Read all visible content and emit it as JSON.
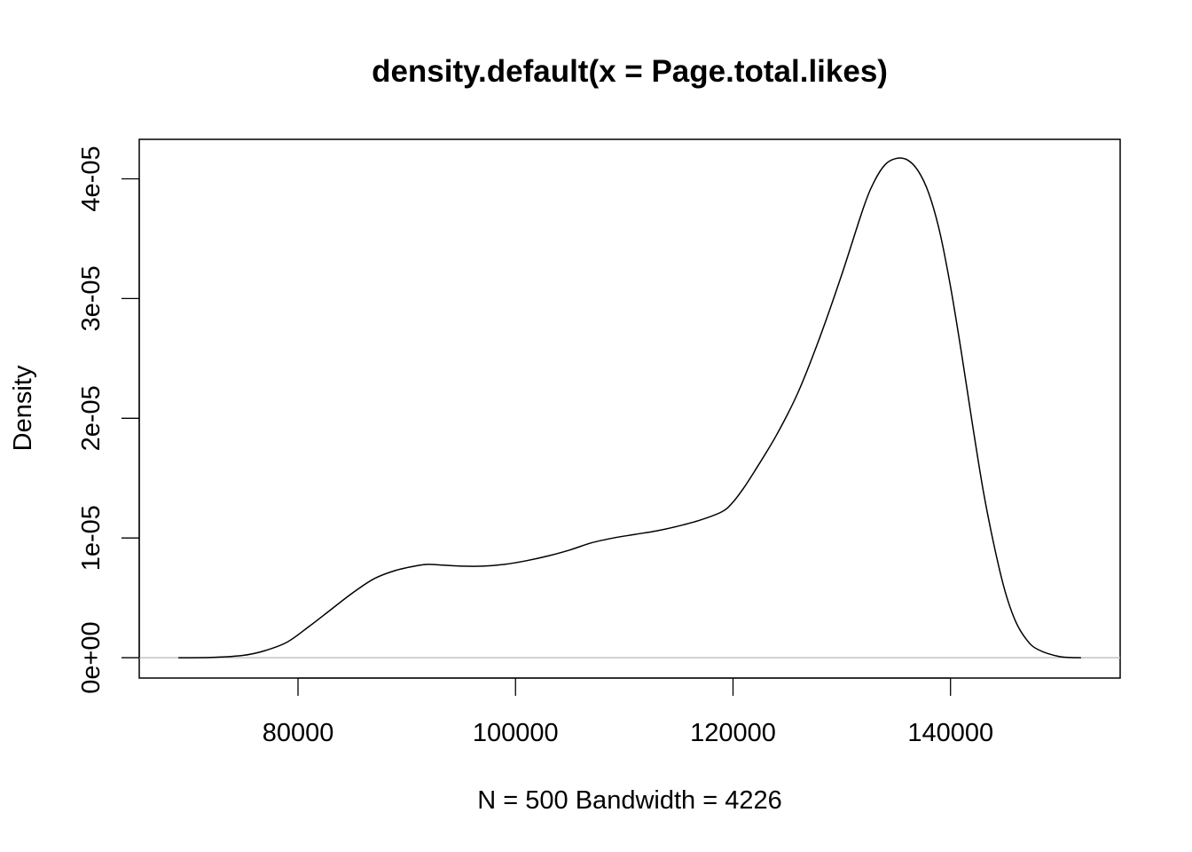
{
  "chart_data": {
    "type": "line",
    "title": "density.default(x = Page.total.likes)",
    "xlabel": "N = 500   Bandwidth = 4226",
    "ylabel": "Density",
    "xlim": [
      65400,
      155600
    ],
    "ylim": [
      -1.7e-06,
      4.33e-05
    ],
    "x_ticks": [
      80000,
      100000,
      120000,
      140000
    ],
    "x_tick_labels": [
      "80000",
      "100000",
      "120000",
      "140000"
    ],
    "y_ticks": [
      0,
      1e-05,
      2e-05,
      3e-05,
      4e-05
    ],
    "y_tick_labels": [
      "0e+00",
      "1e-05",
      "2e-05",
      "3e-05",
      "4e-05"
    ],
    "grid": false,
    "zero_line": true,
    "series": [
      {
        "x": [
          69000,
          72000,
          75000,
          77000,
          79000,
          81000,
          83000,
          85000,
          87000,
          89000,
          91000,
          92000,
          93000,
          95000,
          97000,
          99000,
          101000,
          103000,
          105000,
          107000,
          109000,
          111000,
          113000,
          115000,
          117000,
          119000,
          120000,
          121000,
          122000,
          124000,
          126000,
          128000,
          130000,
          132000,
          133000,
          134000,
          135000,
          136000,
          137000,
          138000,
          139000,
          140000,
          141000,
          142000,
          143000,
          144000,
          145000,
          146000,
          147000,
          148000,
          150000,
          152000
        ],
        "y": [
          0,
          2e-08,
          2e-07,
          6e-07,
          1.3e-06,
          2.6e-06,
          4e-06,
          5.4e-06,
          6.6e-06,
          7.3e-06,
          7.7e-06,
          7.8e-06,
          7.75e-06,
          7.65e-06,
          7.65e-06,
          7.8e-06,
          8.1e-06,
          8.5e-06,
          9e-06,
          9.6e-06,
          1e-05,
          1.03e-05,
          1.06e-05,
          1.1e-05,
          1.15e-05,
          1.22e-05,
          1.3e-05,
          1.42e-05,
          1.56e-05,
          1.86e-05,
          2.22e-05,
          2.68e-05,
          3.2e-05,
          3.76e-05,
          3.98e-05,
          4.12e-05,
          4.17e-05,
          4.16e-05,
          4.07e-05,
          3.88e-05,
          3.56e-05,
          3.1e-05,
          2.55e-05,
          1.96e-05,
          1.4e-05,
          9.4e-06,
          5.6e-06,
          3e-06,
          1.5e-06,
          7e-07,
          1e-07,
          0
        ]
      }
    ]
  }
}
